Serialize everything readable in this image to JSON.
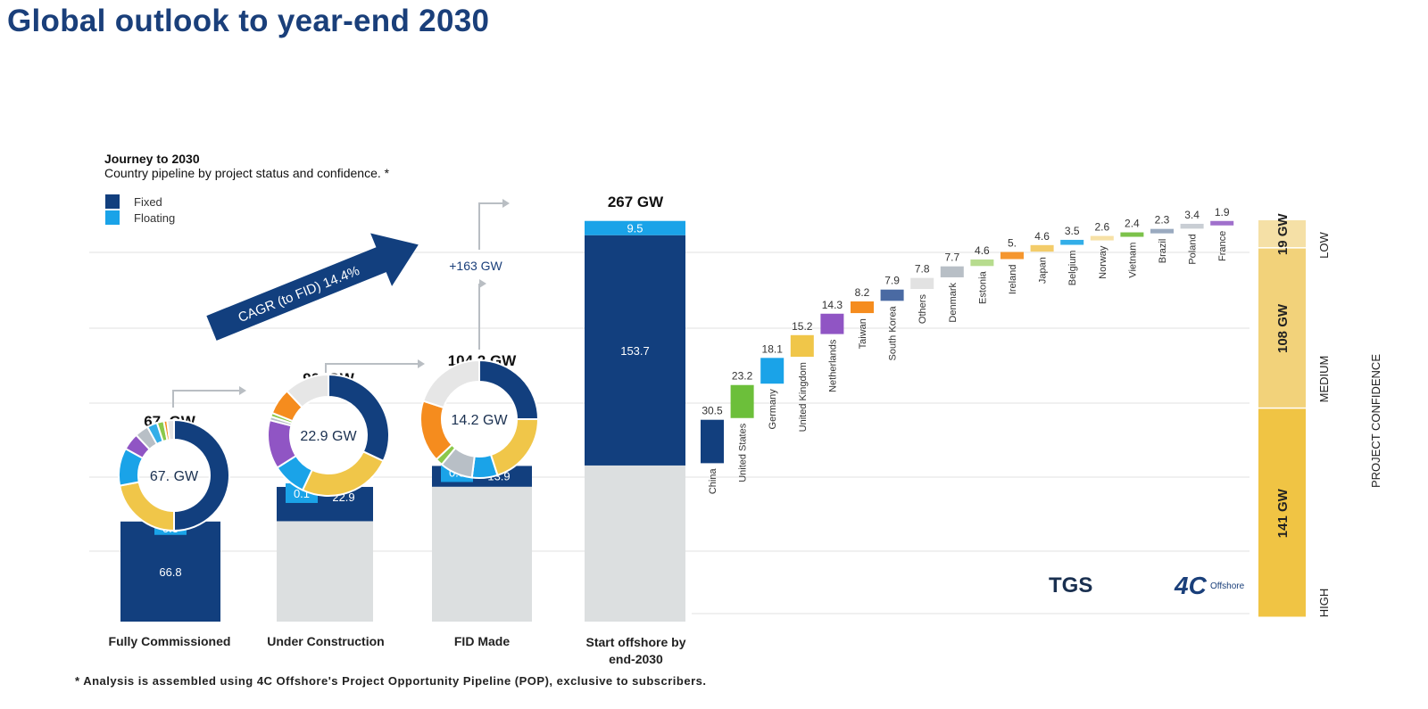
{
  "title": "Global outlook to year-end 2030",
  "subtitle_bold": "Journey to 2030",
  "subtitle": "Country pipeline by project status and confidence. *",
  "legend": [
    {
      "label": "Fixed",
      "color": "#123f7e"
    },
    {
      "label": "Floating",
      "color": "#1aa3e8"
    }
  ],
  "cagr_label": "CAGR (to FID) 14.4%",
  "increase_label": "+163 GW",
  "footnote": "* Analysis is assembled using 4C Offshore's Project Opportunity Pipeline (POP), exclusive to subscribers.",
  "logos": {
    "tgs": "TGS",
    "fourc": "4C",
    "offshore": "Offshore"
  },
  "chart_data": [
    {
      "type": "bar",
      "stacked": true,
      "categories": [
        "Fully Commissioned",
        "Under Construction",
        "FID Made",
        "Start offshore by end-2030"
      ],
      "totals_labels": [
        "67. GW",
        "90. GW",
        "104.2 GW",
        "267 GW"
      ],
      "base": [
        0,
        67,
        90,
        104.2
      ],
      "series": [
        {
          "name": "Fixed",
          "color": "#123f7e",
          "values": [
            66.8,
            22.9,
            13.9,
            153.7
          ],
          "labels": [
            "66.8",
            "22.9",
            "13.9",
            "153.7"
          ]
        },
        {
          "name": "Floating",
          "color": "#1aa3e8",
          "values": [
            0.3,
            0.1,
            0.3,
            9.5
          ],
          "labels": [
            "0.3",
            "0.1",
            "0.3",
            "9.5"
          ]
        }
      ],
      "base_color": "#dcdfe0",
      "ylim": [
        0,
        267
      ]
    },
    {
      "type": "pie",
      "donuts": [
        {
          "center_label": "67. GW",
          "slices": [
            {
              "share": 0.5,
              "color": "#123f7e"
            },
            {
              "share": 0.22,
              "color": "#f0c649"
            },
            {
              "share": 0.11,
              "color": "#1aa3e8"
            },
            {
              "share": 0.05,
              "color": "#9055c4"
            },
            {
              "share": 0.04,
              "color": "#b8bfc6"
            },
            {
              "share": 0.03,
              "color": "#33aee8"
            },
            {
              "share": 0.02,
              "color": "#8cc84b"
            },
            {
              "share": 0.01,
              "color": "#f58c1e"
            },
            {
              "share": 0.02,
              "color": "#e6e6e6"
            }
          ]
        },
        {
          "center_label": "22.9 GW",
          "slices": [
            {
              "share": 0.32,
              "color": "#123f7e"
            },
            {
              "share": 0.25,
              "color": "#f0c649"
            },
            {
              "share": 0.09,
              "color": "#1aa3e8"
            },
            {
              "share": 0.13,
              "color": "#9055c4"
            },
            {
              "share": 0.01,
              "color": "#b8bfc6"
            },
            {
              "share": 0.01,
              "color": "#8cc84b"
            },
            {
              "share": 0.07,
              "color": "#f58c1e"
            },
            {
              "share": 0.12,
              "color": "#e6e6e6"
            }
          ]
        },
        {
          "center_label": "14.2 GW",
          "slices": [
            {
              "share": 0.25,
              "color": "#123f7e"
            },
            {
              "share": 0.2,
              "color": "#f0c649"
            },
            {
              "share": 0.07,
              "color": "#1aa3e8"
            },
            {
              "share": 0.09,
              "color": "#b8bfc6"
            },
            {
              "share": 0.02,
              "color": "#8cc84b"
            },
            {
              "share": 0.17,
              "color": "#f58c1e"
            },
            {
              "share": 0.2,
              "color": "#e6e6e6"
            }
          ]
        }
      ]
    },
    {
      "type": "bar",
      "waterfall": true,
      "start": 104.2,
      "categories": [
        "China",
        "United States",
        "Germany",
        "United Kingdom",
        "Netherlands",
        "Taiwan",
        "South Korea",
        "Others",
        "Denmark",
        "Estonia",
        "Ireland",
        "Japan",
        "Belgium",
        "Norway",
        "Vietnam",
        "Brazil",
        "Poland",
        "France"
      ],
      "values": [
        30.5,
        23.2,
        18.1,
        15.2,
        14.3,
        8.2,
        7.9,
        7.8,
        7.7,
        4.6,
        5,
        4.6,
        3.5,
        2.6,
        2.4,
        2.3,
        3.4,
        1.9
      ],
      "value_labels": [
        "30.5",
        "23.2",
        "18.1",
        "15.2",
        "14.3",
        "8.2",
        "7.9",
        "7.8",
        "7.7",
        "4.6",
        "5.",
        "4.6",
        "3.5",
        "2.6",
        "2.4",
        "2.3",
        "3.4",
        "1.9"
      ],
      "colors": [
        "#123f7e",
        "#6cbf3a",
        "#1aa3e8",
        "#f0c649",
        "#9055c4",
        "#f58c1e",
        "#4a6aa3",
        "#e2e2e2",
        "#b8bfc6",
        "#b7dc8e",
        "#f5962e",
        "#f3cc6a",
        "#33aee8",
        "#f7e1a6",
        "#7cc24a",
        "#9aaac0",
        "#c9ced4",
        "#a070cc"
      ]
    },
    {
      "type": "bar",
      "stacked": true,
      "title": "PROJECT CONFIDENCE",
      "categories": [
        "HIGH",
        "MEDIUM",
        "LOW"
      ],
      "values": [
        141,
        108,
        19
      ],
      "labels": [
        "141 GW",
        "108 GW",
        "19 GW"
      ],
      "colors": [
        "#f0c444",
        "#f2d27a",
        "#f5e0a6"
      ]
    }
  ]
}
